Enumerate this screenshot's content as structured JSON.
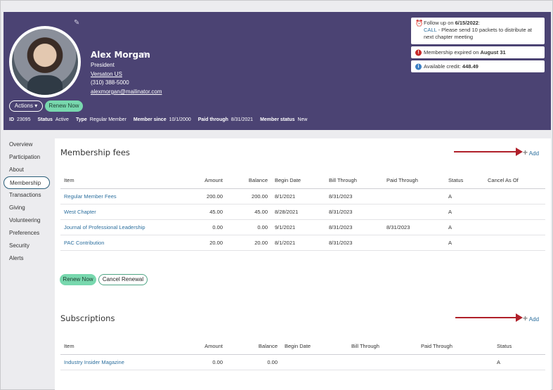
{
  "profile": {
    "name": "Alex Morgan",
    "title": "President",
    "company": "Versaton US",
    "phone": "(310) 388-5000",
    "email": "alexmorgan@mailinator.com",
    "actions_label": "Actions ▾",
    "renew_label": "Renew Now"
  },
  "meta": [
    {
      "label": "ID",
      "value": "23095"
    },
    {
      "label": "Status",
      "value": "Active"
    },
    {
      "label": "Type",
      "value": "Regular Member"
    },
    {
      "label": "Member since",
      "value": "10/1/2000"
    },
    {
      "label": "Paid through",
      "value": "8/31/2021"
    },
    {
      "label": "Member status",
      "value": "New"
    }
  ],
  "notices": {
    "followup_prefix": "Follow up on ",
    "followup_date": "6/15/2022",
    "followup_suffix": ":",
    "followup_call": "CALL",
    "followup_text": " - Please send 10 packets to distribute at next chapter meeting",
    "expired_prefix": "Membership expired on ",
    "expired_date": "August 31",
    "credit_prefix": "Available credit: ",
    "credit_value": "448.49"
  },
  "sidebar": {
    "items": [
      "Overview",
      "Participation",
      "About",
      "Membership",
      "Transactions",
      "Giving",
      "Volunteering",
      "Preferences",
      "Security",
      "Alerts"
    ]
  },
  "fees": {
    "title": "Membership fees",
    "add_label": "Add",
    "columns": [
      "Item",
      "Amount",
      "Balance",
      "Begin Date",
      "Bill Through",
      "Paid Through",
      "Status",
      "Cancel As Of"
    ],
    "rows": [
      [
        "Regular Member Fees",
        "200.00",
        "200.00",
        "8/1/2021",
        "8/31/2023",
        "",
        "A",
        ""
      ],
      [
        "West Chapter",
        "45.00",
        "45.00",
        "8/28/2021",
        "8/31/2023",
        "",
        "A",
        ""
      ],
      [
        "Journal of Professional Leadership",
        "0.00",
        "0.00",
        "9/1/2021",
        "8/31/2023",
        "8/31/2023",
        "A",
        ""
      ],
      [
        "PAC Contribution",
        "20.00",
        "20.00",
        "8/1/2021",
        "8/31/2023",
        "",
        "A",
        ""
      ]
    ],
    "renew_label": "Renew Now",
    "cancel_label": "Cancel Renewal"
  },
  "subscriptions": {
    "title": "Subscriptions",
    "add_label": "Add",
    "columns": [
      "Item",
      "Amount",
      "Balance",
      "Begin Date",
      "Bill Through",
      "Paid Through",
      "Status"
    ],
    "rows": [
      [
        "Industry Insider Magazine",
        "0.00",
        "0.00",
        "",
        "",
        "",
        "A"
      ]
    ]
  },
  "colors": {
    "header_bg": "#4b4373",
    "accent_green": "#78d8ae",
    "link_blue": "#2c6f9e",
    "arrow_red": "#b0202a",
    "alert_red": "#c62828",
    "info_blue": "#3b7fc4"
  }
}
